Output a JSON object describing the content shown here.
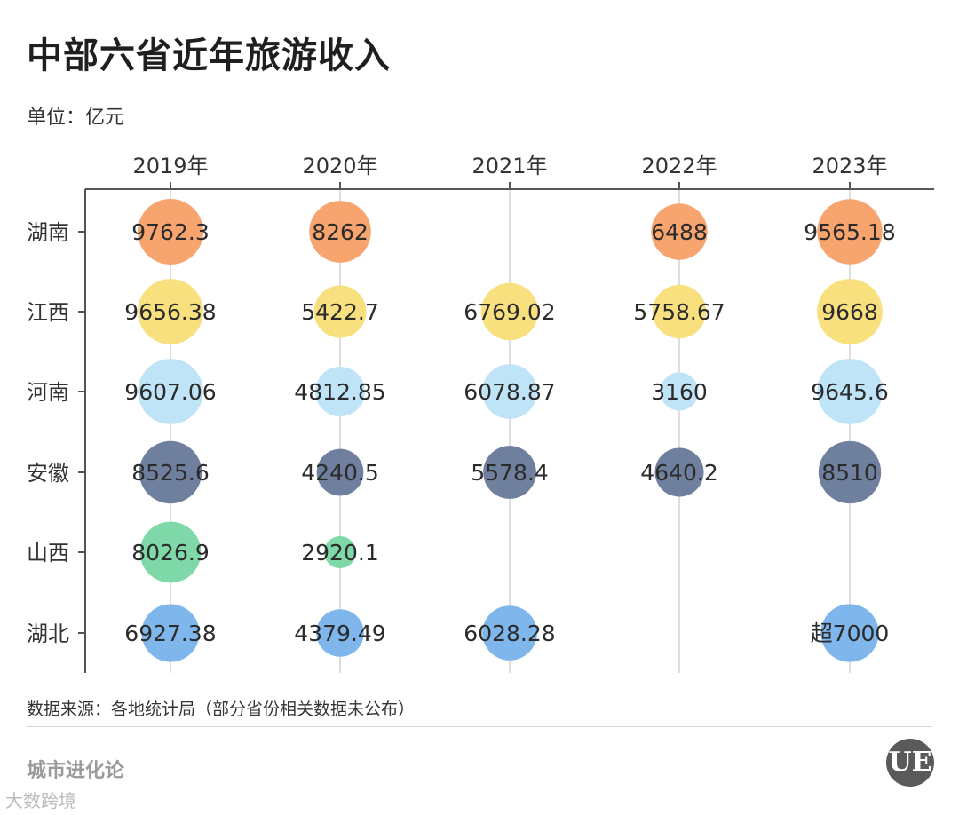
{
  "header": {
    "title": "中部六省近年旅游收入",
    "unit": "单位：亿元"
  },
  "footer": {
    "source": "数据来源：各地统计局（部分省份相关数据未公布）",
    "brand": "城市进化论",
    "logo_text": "UE",
    "corner_mark": "大数跨境"
  },
  "chart_data": {
    "type": "bubble-table",
    "title": "中部六省近年旅游收入",
    "unit": "亿元",
    "columns": [
      "2019年",
      "2020年",
      "2021年",
      "2022年",
      "2023年"
    ],
    "rows": [
      "湖南",
      "江西",
      "河南",
      "安徽",
      "山西",
      "湖北"
    ],
    "colors": {
      "湖南": "#f7a46f",
      "江西": "#f9e07f",
      "河南": "#bfe3f7",
      "安徽": "#6f7f9e",
      "山西": "#7fd8a8",
      "湖北": "#7fb7ec"
    },
    "values": [
      [
        "9762.3",
        "8262",
        null,
        "6488",
        "9565.18"
      ],
      [
        "9656.38",
        "5422.7",
        "6769.02",
        "5758.67",
        "9668"
      ],
      [
        "9607.06",
        "4812.85",
        "6078.87",
        "3160",
        "9645.6"
      ],
      [
        "8525.6",
        "4240.5",
        "5578.4",
        "4640.2",
        "8510"
      ],
      [
        "8026.9",
        "2920.1",
        null,
        null,
        null
      ],
      [
        "6927.38",
        "4379.49",
        "6028.28",
        null,
        "超7000"
      ]
    ],
    "bubble_sizes": [
      [
        9762.3,
        8262,
        null,
        6488,
        9565.18
      ],
      [
        9656.38,
        5422.7,
        6769.02,
        5758.67,
        9668
      ],
      [
        9607.06,
        4812.85,
        6078.87,
        3160,
        9645.6
      ],
      [
        8525.6,
        4240.5,
        5578.4,
        4640.2,
        8510
      ],
      [
        8026.9,
        2920.1,
        null,
        null,
        null
      ],
      [
        6927.38,
        4379.49,
        6028.28,
        null,
        7000
      ]
    ],
    "grid": true
  }
}
